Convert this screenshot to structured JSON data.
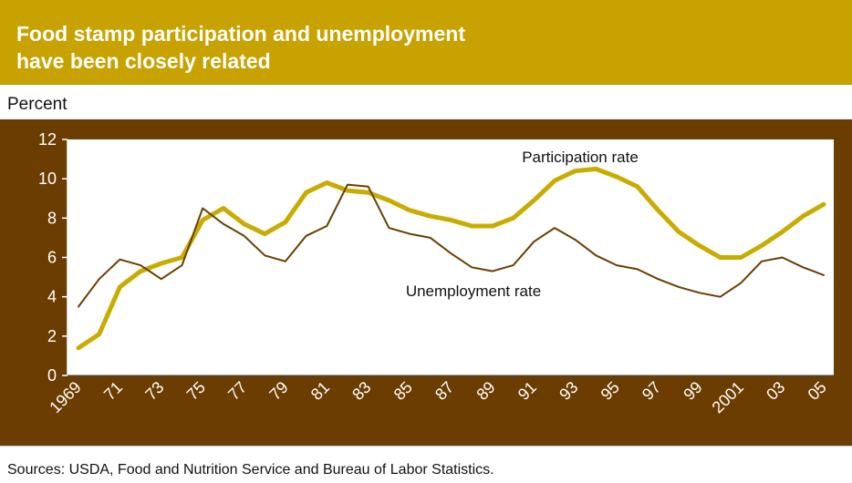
{
  "chart_data": {
    "type": "line",
    "title": "Food stamp participation and unemployment have been closely related",
    "title_lines": [
      "Food stamp participation and unemployment",
      "have been closely related"
    ],
    "unit_label": "Percent",
    "source": "Sources: USDA, Food and Nutrition Service and Bureau of Labor Statistics.",
    "x": [
      1969,
      1970,
      1971,
      1972,
      1973,
      1974,
      1975,
      1976,
      1977,
      1978,
      1979,
      1980,
      1981,
      1982,
      1983,
      1984,
      1985,
      1986,
      1987,
      1988,
      1989,
      1990,
      1991,
      1992,
      1993,
      1994,
      1995,
      1996,
      1997,
      1998,
      1999,
      2000,
      2001,
      2002,
      2003,
      2004,
      2005
    ],
    "x_tick_values": [
      1969,
      1971,
      1973,
      1975,
      1977,
      1979,
      1981,
      1983,
      1985,
      1987,
      1989,
      1991,
      1993,
      1995,
      1997,
      1999,
      2001,
      2003,
      2005
    ],
    "x_tick_labels": [
      "1969",
      "71",
      "73",
      "75",
      "77",
      "79",
      "81",
      "83",
      "85",
      "87",
      "89",
      "91",
      "93",
      "95",
      "97",
      "99",
      "2001",
      "03",
      "05"
    ],
    "ylim": [
      0,
      12
    ],
    "y_ticks": [
      0,
      2,
      4,
      6,
      8,
      10,
      12
    ],
    "grid": false,
    "legend": "none",
    "series": [
      {
        "name": "Participation rate",
        "color": "#c8ad00",
        "values": [
          1.4,
          2.1,
          4.5,
          5.3,
          5.7,
          6.0,
          7.9,
          8.5,
          7.7,
          7.2,
          7.8,
          9.3,
          9.8,
          9.4,
          9.3,
          8.9,
          8.4,
          8.1,
          7.9,
          7.6,
          7.6,
          8.0,
          8.9,
          9.9,
          10.4,
          10.5,
          10.1,
          9.6,
          8.4,
          7.3,
          6.6,
          6.0,
          6.0,
          6.6,
          7.3,
          8.1,
          8.7
        ]
      },
      {
        "name": "Unemployment rate",
        "color": "#6b3d00",
        "values": [
          3.5,
          4.9,
          5.9,
          5.6,
          4.9,
          5.6,
          8.5,
          7.7,
          7.1,
          6.1,
          5.8,
          7.1,
          7.6,
          9.7,
          9.6,
          7.5,
          7.2,
          7.0,
          6.2,
          5.5,
          5.3,
          5.6,
          6.8,
          7.5,
          6.9,
          6.1,
          5.6,
          5.4,
          4.9,
          4.5,
          4.2,
          4.0,
          4.7,
          5.8,
          6.0,
          5.5,
          5.1
        ]
      }
    ]
  }
}
